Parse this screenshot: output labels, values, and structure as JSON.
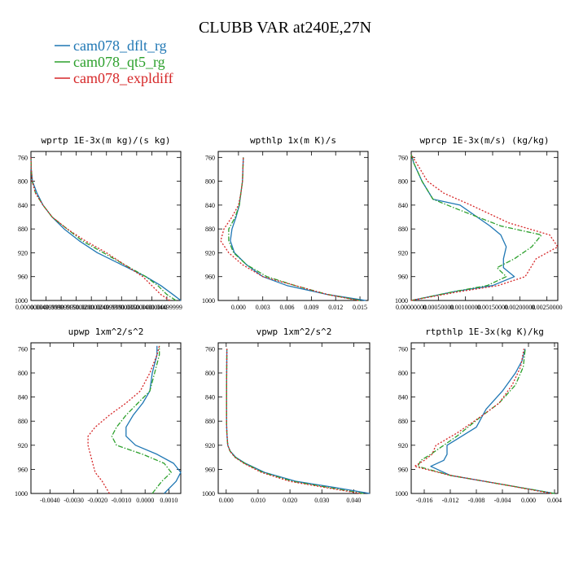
{
  "title": "CLUBB VAR at240E,27N",
  "legend": [
    {
      "label": "cam078_dflt_rg",
      "color": "#1f77b4",
      "dash": "solid"
    },
    {
      "label": "cam078_qt5_rg",
      "color": "#2ca02c",
      "dash": "dashdot"
    },
    {
      "label": "cam078_expldiff",
      "color": "#d62728",
      "dash": "dotted"
    }
  ],
  "chart_data": [
    {
      "type": "line",
      "title": "wprtp  1E-3x(m kg)/(s kg)",
      "ylim": [
        1000,
        750
      ],
      "yticks": [
        760,
        800,
        840,
        880,
        920,
        960,
        1000
      ],
      "xlim": [
        0,
        0.0496
      ],
      "xticks": [
        0,
        0.005,
        0.01,
        0.015,
        0.02,
        0.025,
        0.03,
        0.035,
        0.04,
        0.045
      ],
      "xticklabels": [
        "0.00000000",
        "0.00499999",
        "0.00999999",
        "0.01500000",
        "0.02000000",
        "0.02499999",
        "0.03000000",
        "0.03500000",
        "0.04000000",
        "0.04499999"
      ],
      "series": [
        {
          "name": "cam078_dflt_rg",
          "x": [
            0.0496,
            0.047,
            0.043,
            0.038,
            0.03,
            0.022,
            0.016,
            0.011,
            0.007,
            0.004,
            0.002,
            0.0005,
            0.0001,
            0
          ],
          "y": [
            1000,
            990,
            975,
            960,
            940,
            920,
            900,
            880,
            860,
            840,
            820,
            800,
            780,
            760
          ]
        },
        {
          "name": "cam078_qt5_rg",
          "x": [
            0.048,
            0.045,
            0.042,
            0.038,
            0.031,
            0.024,
            0.017,
            0.012,
            0.007,
            0.004,
            0.0015,
            0.0004,
            0.0001,
            0
          ],
          "y": [
            1000,
            990,
            975,
            960,
            940,
            920,
            900,
            880,
            860,
            840,
            820,
            800,
            780,
            760
          ]
        },
        {
          "name": "cam078_expldiff",
          "x": [
            0.046,
            0.043,
            0.04,
            0.037,
            0.031,
            0.025,
            0.018,
            0.012,
            0.007,
            0.004,
            0.0015,
            0.0004,
            0.0001,
            0
          ],
          "y": [
            1000,
            990,
            975,
            960,
            940,
            920,
            900,
            880,
            860,
            840,
            820,
            800,
            780,
            760
          ]
        }
      ]
    },
    {
      "type": "line",
      "title": "wpthlp  1x(m K)/s",
      "ylim": [
        1000,
        750
      ],
      "yticks": [
        760,
        800,
        840,
        880,
        920,
        960,
        1000
      ],
      "xlim": [
        -0.0025,
        0.016
      ],
      "xticks": [
        0,
        0.003,
        0.006,
        0.009,
        0.012,
        0.015
      ],
      "xticklabels": [
        "0.000",
        "0.003",
        "0.006",
        "0.009",
        "0.012",
        "0.015"
      ],
      "series": [
        {
          "name": "cam078_dflt_rg",
          "x": [
            0.0157,
            0.011,
            0.006,
            0.003,
            0.001,
            -0.0005,
            -0.001,
            -0.0008,
            -0.0003,
            0.0001,
            0.0003,
            0.0005,
            0.0006
          ],
          "y": [
            1000,
            990,
            975,
            960,
            940,
            920,
            900,
            880,
            860,
            840,
            820,
            800,
            760
          ]
        },
        {
          "name": "cam078_qt5_rg",
          "x": [
            0.015,
            0.011,
            0.007,
            0.0035,
            0.001,
            -0.0006,
            -0.0012,
            -0.0012,
            -0.0004,
            0.0001,
            0.0003,
            0.0005,
            0.0006
          ],
          "y": [
            1000,
            990,
            975,
            960,
            940,
            920,
            900,
            880,
            860,
            840,
            820,
            800,
            760
          ]
        },
        {
          "name": "cam078_expldiff",
          "x": [
            0.0148,
            0.011,
            0.007,
            0.003,
            0.0005,
            -0.0012,
            -0.0022,
            -0.0018,
            -0.0008,
            0,
            0.0003,
            0.0005,
            0.0006
          ],
          "y": [
            1000,
            990,
            975,
            960,
            940,
            920,
            900,
            880,
            860,
            840,
            820,
            800,
            760
          ]
        }
      ]
    },
    {
      "type": "line",
      "title": "wprcp  1E-3x(m/s) (kg/kg)",
      "ylim": [
        1000,
        750
      ],
      "yticks": [
        760,
        800,
        840,
        880,
        920,
        960,
        1000
      ],
      "xlim": [
        0,
        0.0027
      ],
      "xticks": [
        0,
        0.0005,
        0.001,
        0.0015,
        0.002,
        0.0025
      ],
      "xticklabels": [
        "0.00000000",
        "0.00050000",
        "0.00100000",
        "0.00150000",
        "0.00200000",
        "0.00250000"
      ],
      "series": [
        {
          "name": "cam078_dflt_rg",
          "x": [
            0,
            0.0008,
            0.0015,
            0.0019,
            0.0017,
            0.0017,
            0.00175,
            0.00165,
            0.00145,
            0.0009,
            0.0004,
            0.0002,
            5e-05,
            0
          ],
          "y": [
            1000,
            985,
            975,
            960,
            945,
            930,
            910,
            890,
            875,
            840,
            830,
            800,
            770,
            755
          ]
        },
        {
          "name": "cam078_qt5_rg",
          "x": [
            0,
            0.0008,
            0.0014,
            0.00175,
            0.00158,
            0.0019,
            0.00222,
            0.0024,
            0.00165,
            0.0008,
            0.0004,
            0.0002,
            5e-05,
            0
          ],
          "y": [
            1000,
            985,
            975,
            960,
            945,
            930,
            910,
            890,
            875,
            845,
            830,
            800,
            770,
            755
          ]
        },
        {
          "name": "cam078_expldiff",
          "x": [
            0,
            0.0009,
            0.0016,
            0.0021,
            0.0022,
            0.0023,
            0.0027,
            0.00255,
            0.0018,
            0.0011,
            0.0006,
            0.0003,
            0.0001,
            0
          ],
          "y": [
            1000,
            985,
            975,
            960,
            945,
            930,
            910,
            890,
            870,
            840,
            820,
            800,
            770,
            755
          ]
        }
      ]
    },
    {
      "type": "line",
      "title": "upwp  1xm^2/s^2",
      "ylim": [
        1000,
        750
      ],
      "yticks": [
        760,
        800,
        840,
        880,
        920,
        960,
        1000
      ],
      "xlim": [
        -0.0048,
        0.0015
      ],
      "xticks": [
        -0.004,
        -0.003,
        -0.002,
        -0.001,
        0,
        0.001
      ],
      "xticklabels": [
        "-0.0040",
        "-0.0030",
        "-0.0020",
        "-0.0010",
        "0.0000",
        "0.0010"
      ],
      "series": [
        {
          "name": "cam078_dflt_rg",
          "x": [
            0.0008,
            0.0013,
            0.0015,
            0.0012,
            0.0005,
            -0.0004,
            -0.0008,
            -0.0008,
            -0.0005,
            -0.0001,
            0.0002,
            0.0003,
            0.0005,
            0.0005
          ],
          "y": [
            1000,
            980,
            965,
            950,
            935,
            920,
            905,
            890,
            870,
            850,
            830,
            800,
            770,
            755
          ]
        },
        {
          "name": "cam078_qt5_rg",
          "x": [
            0.0003,
            0.0007,
            0.0011,
            0.0008,
            -0.0001,
            -0.0012,
            -0.0014,
            -0.0012,
            -0.0008,
            -0.0003,
            0.0002,
            0.0004,
            0.0006,
            0.0006
          ],
          "y": [
            1000,
            980,
            965,
            950,
            935,
            920,
            905,
            890,
            870,
            850,
            830,
            800,
            770,
            755
          ]
        },
        {
          "name": "cam078_expldiff",
          "x": [
            -0.0015,
            -0.0018,
            -0.0021,
            -0.0022,
            -0.0023,
            -0.0024,
            -0.0024,
            -0.0021,
            -0.0015,
            -0.0008,
            -0.0002,
            0.0002,
            0.0005,
            0.0006
          ],
          "y": [
            1000,
            980,
            965,
            950,
            935,
            920,
            905,
            890,
            870,
            850,
            830,
            800,
            770,
            755
          ]
        }
      ]
    },
    {
      "type": "line",
      "title": "vpwp  1xm^2/s^2",
      "ylim": [
        1000,
        750
      ],
      "yticks": [
        760,
        800,
        840,
        880,
        920,
        960,
        1000
      ],
      "xlim": [
        -0.0025,
        0.045
      ],
      "xticks": [
        0,
        0.01,
        0.02,
        0.03,
        0.04
      ],
      "xticklabels": [
        "0.000",
        "0.010",
        "0.020",
        "0.030",
        "0.040"
      ],
      "series": [
        {
          "name": "cam078_dflt_rg",
          "x": [
            0.045,
            0.034,
            0.022,
            0.012,
            0.006,
            0.003,
            0.0013,
            0.0005,
            0.0002,
            0.0001,
            0.0001,
            0.0002
          ],
          "y": [
            1000,
            990,
            980,
            965,
            950,
            940,
            930,
            920,
            900,
            880,
            840,
            760
          ]
        },
        {
          "name": "cam078_qt5_rg",
          "x": [
            0.043,
            0.032,
            0.021,
            0.0115,
            0.0058,
            0.0028,
            0.0012,
            0.0005,
            0.0002,
            0.0001,
            0.0001,
            0.0002
          ],
          "y": [
            1000,
            990,
            980,
            965,
            950,
            940,
            930,
            920,
            900,
            880,
            840,
            760
          ]
        },
        {
          "name": "cam078_expldiff",
          "x": [
            0.042,
            0.031,
            0.02,
            0.011,
            0.0055,
            0.0027,
            0.0012,
            0.0005,
            0.0002,
            0.0001,
            0.0001,
            0.0002
          ],
          "y": [
            1000,
            990,
            980,
            965,
            950,
            940,
            930,
            920,
            900,
            880,
            840,
            760
          ]
        }
      ]
    },
    {
      "type": "line",
      "title": "rtpthlp  1E-3x(kg K)/kg",
      "ylim": [
        1000,
        750
      ],
      "yticks": [
        760,
        800,
        840,
        880,
        920,
        960,
        1000
      ],
      "xlim": [
        -0.018,
        0.0045
      ],
      "xticks": [
        -0.016,
        -0.012,
        -0.008,
        -0.004,
        0,
        0.004
      ],
      "xticklabels": [
        "-0.016",
        "-0.012",
        "-0.008",
        "-0.004",
        "0.000",
        "0.004"
      ],
      "series": [
        {
          "name": "cam078_dflt_rg",
          "x": [
            0.004,
            -0.004,
            -0.012,
            -0.015,
            -0.013,
            -0.0125,
            -0.0125,
            -0.011,
            -0.008,
            -0.0065,
            -0.004,
            -0.002,
            -0.001,
            -0.0005
          ],
          "y": [
            1000,
            985,
            970,
            955,
            945,
            935,
            920,
            910,
            890,
            860,
            830,
            800,
            780,
            760
          ]
        },
        {
          "name": "cam078_qt5_rg",
          "x": [
            0.004,
            -0.004,
            -0.012,
            -0.017,
            -0.0165,
            -0.015,
            -0.013,
            -0.011,
            -0.007,
            -0.0045,
            -0.002,
            -0.0008,
            -0.0005
          ],
          "y": [
            1000,
            985,
            970,
            955,
            945,
            935,
            920,
            905,
            870,
            850,
            820,
            790,
            760
          ]
        },
        {
          "name": "cam078_expldiff",
          "x": [
            0.0035,
            -0.004,
            -0.012,
            -0.0175,
            -0.016,
            -0.0148,
            -0.0142,
            -0.011,
            -0.007,
            -0.0045,
            -0.0025,
            -0.0012,
            -0.0007
          ],
          "y": [
            1000,
            985,
            970,
            955,
            945,
            935,
            920,
            900,
            870,
            850,
            820,
            790,
            760
          ]
        }
      ]
    }
  ]
}
